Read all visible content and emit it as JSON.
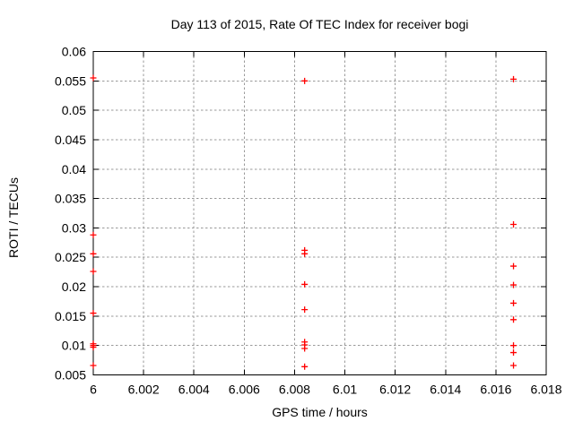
{
  "window": {
    "background": "#ffffff"
  },
  "chart_data": {
    "type": "scatter",
    "title": "Day 113 of 2015, Rate Of TEC Index for receiver bogi",
    "xlabel": "GPS time / hours",
    "ylabel": "ROTI / TECUs",
    "xlim": [
      6.0,
      6.018
    ],
    "ylim": [
      0.005,
      0.06
    ],
    "grid": true,
    "legend": "none",
    "xticks": {
      "values": [
        6.0,
        6.002,
        6.004,
        6.006,
        6.008,
        6.01,
        6.012,
        6.014,
        6.016,
        6.018
      ],
      "labels": [
        "6",
        "6.002",
        "6.004",
        "6.006",
        "6.008",
        "6.01",
        "6.012",
        "6.014",
        "6.016",
        "6.018"
      ]
    },
    "yticks": {
      "values": [
        0.005,
        0.01,
        0.015,
        0.02,
        0.025,
        0.03,
        0.035,
        0.04,
        0.045,
        0.05,
        0.055,
        0.06
      ],
      "labels": [
        "0.005",
        "0.01",
        "0.015",
        "0.02",
        "0.025",
        "0.03",
        "0.035",
        "0.04",
        "0.045",
        "0.05",
        "0.055",
        "0.06"
      ]
    },
    "colors": {
      "marker": "#ff0000",
      "axis": "#000000",
      "grid": "#9a9a9a",
      "text": "#000000"
    },
    "marker": {
      "shape": "plus",
      "size": 7
    },
    "series": [
      {
        "name": "ROTI",
        "points": [
          [
            6.0,
            0.0555
          ],
          [
            6.0,
            0.0288
          ],
          [
            6.0,
            0.0256
          ],
          [
            6.0,
            0.0226
          ],
          [
            6.0,
            0.0155
          ],
          [
            6.0,
            0.0103
          ],
          [
            6.0,
            0.01
          ],
          [
            6.0,
            0.0097
          ],
          [
            6.0,
            0.0066
          ],
          [
            6.0084,
            0.055
          ],
          [
            6.0084,
            0.0262
          ],
          [
            6.0084,
            0.0256
          ],
          [
            6.0084,
            0.0204
          ],
          [
            6.0084,
            0.0161
          ],
          [
            6.0084,
            0.0106
          ],
          [
            6.0084,
            0.0101
          ],
          [
            6.0084,
            0.0095
          ],
          [
            6.0084,
            0.0064
          ],
          [
            6.0167,
            0.0553
          ],
          [
            6.0167,
            0.0306
          ],
          [
            6.0167,
            0.0235
          ],
          [
            6.0167,
            0.0203
          ],
          [
            6.0167,
            0.0172
          ],
          [
            6.0167,
            0.0144
          ],
          [
            6.0167,
            0.01
          ],
          [
            6.0167,
            0.0088
          ],
          [
            6.0167,
            0.0066
          ]
        ]
      }
    ]
  }
}
